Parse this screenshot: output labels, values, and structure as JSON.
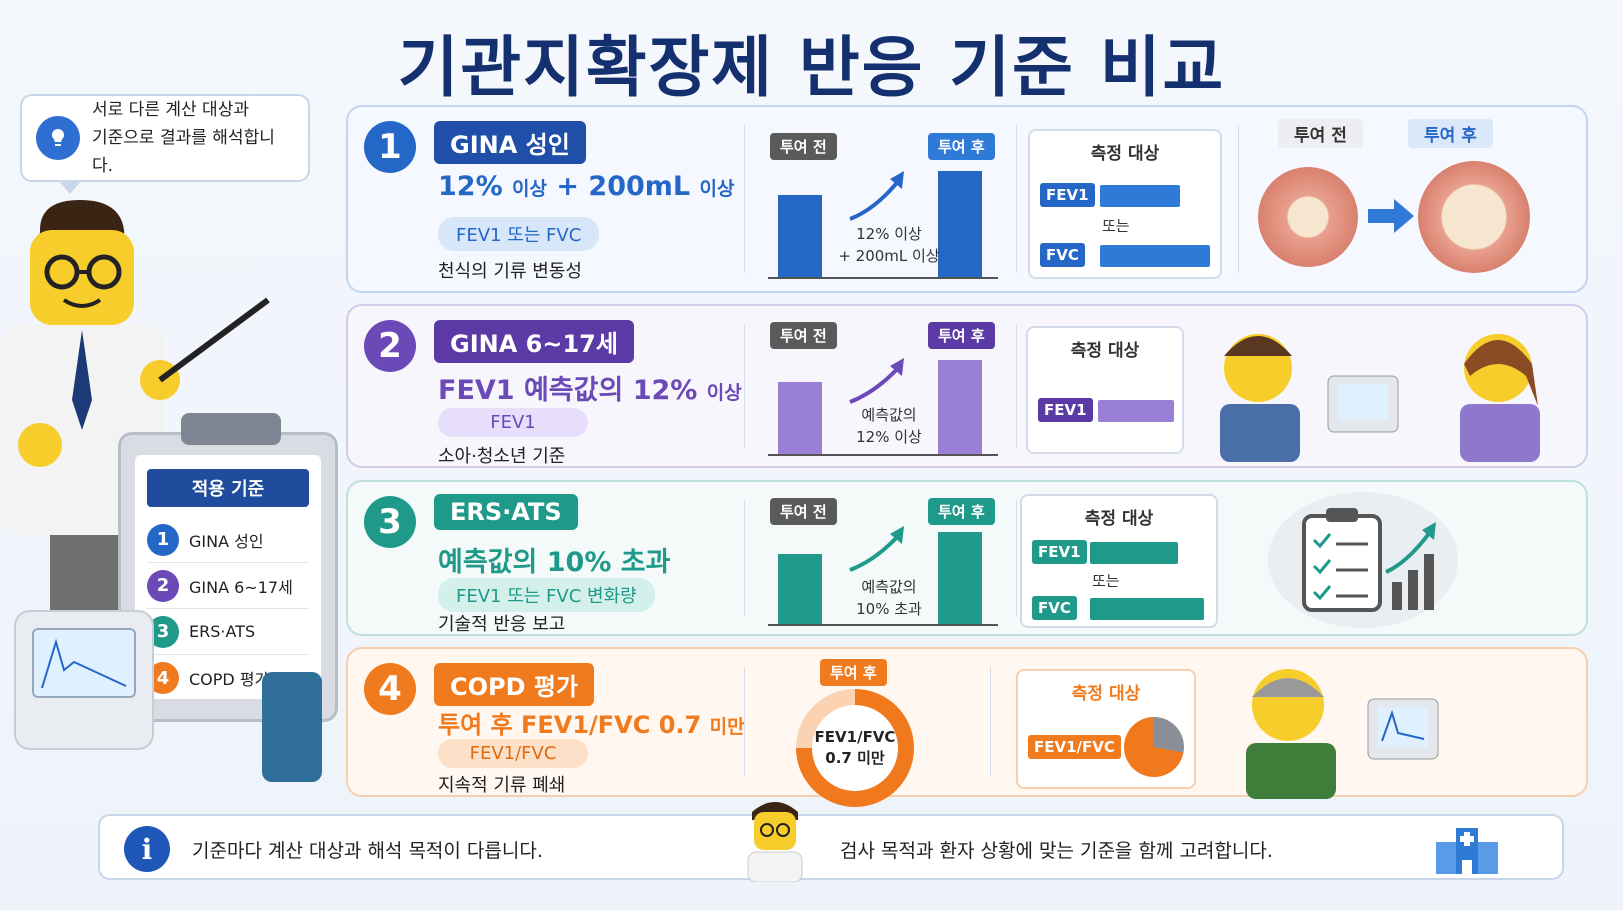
{
  "title": "기관지확장제 반응 기준 비교",
  "speech": {
    "line1": "서로 다른 계산 대상과",
    "line2": "기준으로 결과를 해석합니다."
  },
  "clipboard": {
    "title": "적용 기준",
    "items": [
      {
        "num": "1",
        "label": "GINA 성인",
        "color": "#2467c6"
      },
      {
        "num": "2",
        "label": "GINA 6~17세",
        "color": "#6b49b7"
      },
      {
        "num": "3",
        "label": "ERS·ATS",
        "color": "#1f9a8a"
      },
      {
        "num": "4",
        "label": "COPD 평가",
        "color": "#f07a1e"
      }
    ]
  },
  "cards": [
    {
      "num": "1",
      "tag": "GINA 성인",
      "crit_main": "12% ",
      "crit_small1": "이상",
      "crit_main2": " + 200mL ",
      "crit_small2": "이상",
      "pill": "FEV1 또는 FVC",
      "desc": "천식의 기류 변동성",
      "before": "투여 전",
      "after": "투여 후",
      "note1": "12% 이상",
      "note2": "+ 200mL 이상",
      "meas_title": "측정 대상",
      "m1": "FEV1",
      "or": "또는",
      "m2": "FVC",
      "airway_before": "투여 전",
      "airway_after": "투여 후",
      "color": "#2467c6"
    },
    {
      "num": "2",
      "tag": "GINA 6~17세",
      "crit_main": "FEV1 예측값의 12% ",
      "crit_small1": "이상",
      "pill": "FEV1",
      "desc": "소아·청소년 기준",
      "before": "투여 전",
      "after": "투여 후",
      "note1": "예측값의",
      "note2": "12% 이상",
      "meas_title": "측정 대상",
      "m1": "FEV1",
      "color": "#6b49b7"
    },
    {
      "num": "3",
      "tag": "ERS·ATS",
      "crit_main": "예측값의 10% 초과",
      "pill": "FEV1 또는 FVC 변화량",
      "desc": "기술적 반응 보고",
      "before": "투여 전",
      "after": "투여 후",
      "note1": "예측값의",
      "note2": "10% 초과",
      "meas_title": "측정 대상",
      "m1": "FEV1",
      "or": "또는",
      "m2": "FVC",
      "color": "#1f9a8a"
    },
    {
      "num": "4",
      "tag": "COPD 평가",
      "crit_main": "투여 후 FEV1/FVC 0.7 ",
      "crit_small1": "미만",
      "pill": "FEV1/FVC",
      "desc": "지속적 기류 폐쇄",
      "after": "투여 후",
      "donut1": "FEV1/FVC",
      "donut2": "0.7 미만",
      "meas_title": "측정 대상",
      "m1": "FEV1/FVC",
      "color": "#f07a1e"
    }
  ],
  "footer": {
    "left": "기준마다 계산 대상과 해석 목적이 다릅니다.",
    "right": "검사 목적과 환자 상황에 맞는 기준을 함께 고려합니다."
  },
  "colors": {
    "title": "#14306e",
    "blue": "#2467c6",
    "purple": "#6b49b7",
    "teal": "#1f9a8a",
    "orange": "#f07a1e"
  }
}
